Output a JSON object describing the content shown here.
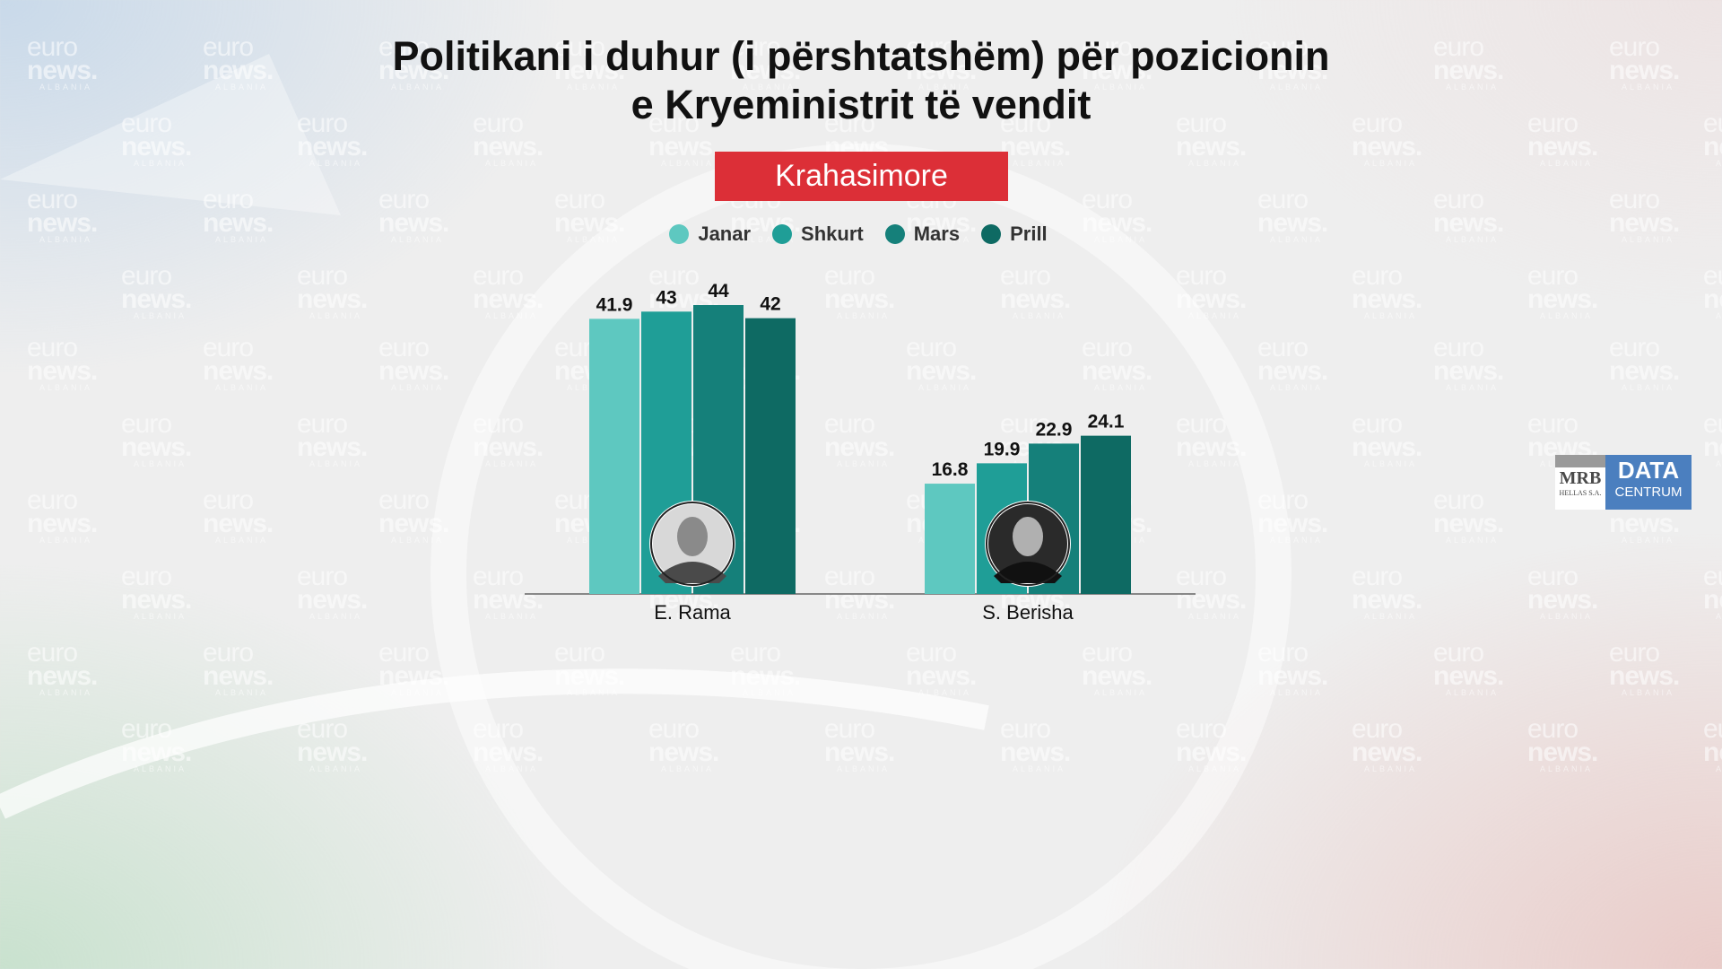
{
  "title_line1": "Politikani i duhur (i përshtatshëm) për pozicionin",
  "title_line2": "e Kryeministrit të vendit",
  "badge": "Krahasimore",
  "watermark": {
    "line1": "euro",
    "line2": "news.",
    "line3": "ALBANIA"
  },
  "logo": {
    "mrb": "MRB",
    "hellas": "HELLAS S.A.",
    "data": "DATA",
    "centrum": "CENTRUM"
  },
  "colors": {
    "badge": "#dc2f37",
    "series": [
      "#5ec8c0",
      "#1f9e97",
      "#15807a",
      "#0e6a63"
    ]
  },
  "chart_data": {
    "type": "bar",
    "categories": [
      "E. Rama",
      "S. Berisha"
    ],
    "series": [
      {
        "name": "Janar",
        "values": [
          41.9,
          16.8
        ]
      },
      {
        "name": "Shkurt",
        "values": [
          43,
          19.9
        ]
      },
      {
        "name": "Mars",
        "values": [
          44,
          22.9
        ]
      },
      {
        "name": "Prill",
        "values": [
          42,
          24.1
        ]
      }
    ],
    "value_labels": [
      [
        "41.9",
        "43",
        "44",
        "42"
      ],
      [
        "16.8",
        "19.9",
        "22.9",
        "24.1"
      ]
    ],
    "legend_position": "top-center",
    "grid": false,
    "ylim": [
      0,
      44
    ],
    "category_portraits": [
      "portrait",
      "portrait"
    ]
  }
}
